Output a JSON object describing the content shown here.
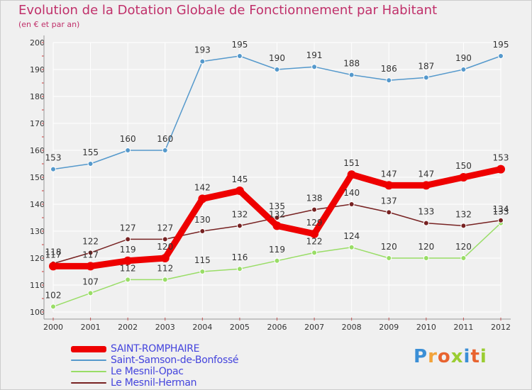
{
  "title": "Evolution de la Dotation Globale de Fonctionnement par Habitant",
  "subtitle": "(en € et par an)",
  "logo_text": "Proxiti",
  "colors": {
    "background": "#f0f0f0",
    "title": "#c0306a",
    "grid": "#ffffff",
    "axis_labels": "#333333",
    "legend_text": "#4444dd"
  },
  "chart_data": {
    "type": "line",
    "title": "Evolution de la Dotation Globale de Fonctionnement par Habitant",
    "subtitle": "(en € et par an)",
    "xlabel": "",
    "ylabel": "",
    "x": [
      "2000",
      "2001",
      "2002",
      "2003",
      "2004",
      "2005",
      "2006",
      "2007",
      "2008",
      "2009",
      "2010",
      "2011",
      "2012"
    ],
    "yticks": [
      100,
      110,
      120,
      130,
      140,
      150,
      160,
      170,
      180,
      190,
      200
    ],
    "ylim": [
      100,
      200
    ],
    "grid": true,
    "legend_position": "bottom-left",
    "series": [
      {
        "name": "Saint-Samson-de-Bonfossé",
        "color": "#5599cc",
        "values": [
          153,
          155,
          160,
          160,
          193,
          195,
          190,
          191,
          188,
          186,
          187,
          190,
          195
        ],
        "labels": [
          "153",
          "155",
          "160",
          "160",
          "193",
          "195",
          "190",
          "191",
          "188",
          "186",
          "187",
          "190",
          "195"
        ]
      },
      {
        "name": "Le Mesnil-Opac",
        "color": "#99dd66",
        "values": [
          102,
          107,
          112,
          112,
          115,
          116,
          119,
          122,
          124,
          120,
          120,
          120,
          133
        ],
        "labels": [
          "102",
          "107",
          "112",
          "112",
          "115",
          "116",
          "119",
          "122",
          "124",
          "120",
          "120",
          "120",
          "133"
        ]
      },
      {
        "name": "Le Mesnil-Herman",
        "color": "#772222",
        "values": [
          118,
          122,
          127,
          127,
          130,
          132,
          135,
          138,
          140,
          137,
          133,
          132,
          134
        ],
        "labels": [
          "118",
          "122",
          "127",
          "127",
          "130",
          "132",
          "135",
          "138",
          "140",
          "137",
          "133",
          "132",
          "134"
        ]
      },
      {
        "name": "SAINT-ROMPHAIRE",
        "color": "#ee0000",
        "values": [
          117,
          117,
          119,
          120,
          142,
          145,
          132,
          129,
          151,
          147,
          147,
          150,
          153
        ],
        "labels": [
          "117",
          "117",
          "119",
          "120",
          "142",
          "145",
          "132",
          "129",
          "151",
          "147",
          "147",
          "150",
          "153"
        ]
      }
    ],
    "legend": [
      {
        "name": "SAINT-ROMPHAIRE",
        "color": "#ee0000",
        "thickness": 9
      },
      {
        "name": "Saint-Samson-de-Bonfossé",
        "color": "#5599cc",
        "thickness": 2
      },
      {
        "name": "Le Mesnil-Opac",
        "color": "#99dd66",
        "thickness": 2
      },
      {
        "name": "Le Mesnil-Herman",
        "color": "#772222",
        "thickness": 2
      }
    ]
  }
}
